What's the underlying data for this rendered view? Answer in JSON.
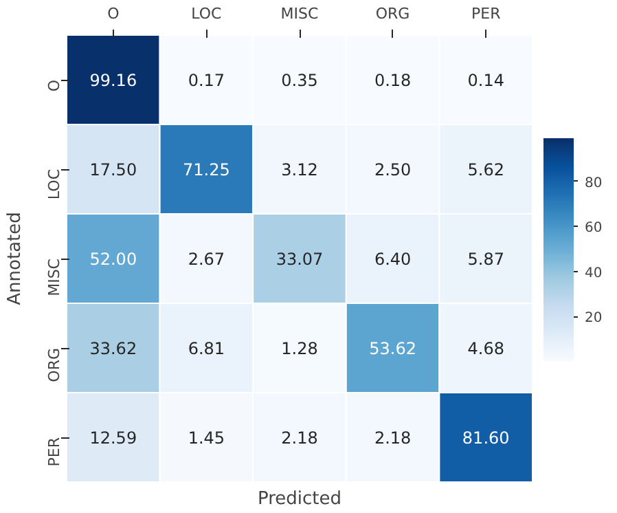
{
  "chart_data": {
    "type": "heatmap",
    "xlabel": "Predicted",
    "ylabel": "Annotated",
    "categories": [
      "O",
      "LOC",
      "MISC",
      "ORG",
      "PER"
    ],
    "y_categories": [
      "O",
      "LOC",
      "MISC",
      "ORG",
      "PER"
    ],
    "cells": [
      [
        99.16,
        0.17,
        0.35,
        0.18,
        0.14
      ],
      [
        17.5,
        71.25,
        3.12,
        2.5,
        5.62
      ],
      [
        52.0,
        2.67,
        33.07,
        6.4,
        5.87
      ],
      [
        33.62,
        6.81,
        1.28,
        53.62,
        4.68
      ],
      [
        12.59,
        1.45,
        2.18,
        2.18,
        81.6
      ]
    ],
    "cell_labels": [
      [
        "99.16",
        "0.17",
        "0.35",
        "0.18",
        "0.14"
      ],
      [
        "17.50",
        "71.25",
        "3.12",
        "2.50",
        "5.62"
      ],
      [
        "52.00",
        "2.67",
        "33.07",
        "6.40",
        "5.87"
      ],
      [
        "33.62",
        "6.81",
        "1.28",
        "53.62",
        "4.68"
      ],
      [
        "12.59",
        "1.45",
        "2.18",
        "2.18",
        "81.60"
      ]
    ],
    "clim": [
      0.14,
      99.16
    ],
    "cticks": [
      20,
      40,
      60,
      80
    ]
  }
}
